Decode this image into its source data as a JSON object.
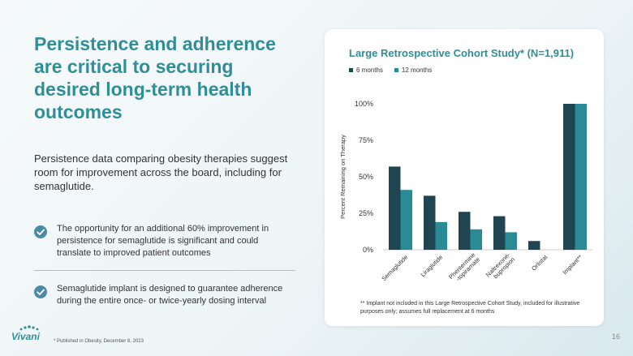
{
  "headline": "Persistence and adherence are critical to securing desired long-term health outcomes",
  "intro": "Persistence data comparing obesity therapies suggest room for improvement across the board, including for semaglutide.",
  "bullets": [
    {
      "text": "The opportunity for an additional 60% improvement in persistence for semaglutide is significant and could translate to improved patient outcomes",
      "icon": "check-circle-icon"
    },
    {
      "text": "Semaglutide implant is designed to guarantee adherence during the entire once- or twice-yearly dosing interval",
      "icon": "check-circle-icon"
    }
  ],
  "footnote": "* Published in Obesity, December 8, 2023",
  "logo_text": "Vivani",
  "page_number": "16",
  "chart_note": "** Implant not included in this Large Retrospective Cohort Study, included for illustrative purposes only; assumes full replacement at 6 months",
  "colors": {
    "accent": "#2f8e96",
    "series_6m": "#1f4650",
    "series_12m": "#2a8a95"
  },
  "chart_data": {
    "type": "bar",
    "title": "Large Retrospective Cohort Study* (N=1,911)",
    "ylabel": "Percent Remaining on Therapy",
    "xlabel": "",
    "ylim": [
      0,
      100
    ],
    "yticks": [
      0,
      25,
      50,
      75,
      100
    ],
    "ytick_labels": [
      "0%",
      "25%",
      "50%",
      "75%",
      "100%"
    ],
    "categories": [
      "Semaglutide",
      "Liraglutide",
      "Phentermine-topiramate",
      "Naltrexone-bupropion",
      "Orlistat",
      "Implant**"
    ],
    "category_lines": [
      [
        "Semaglutide"
      ],
      [
        "Liraglutide"
      ],
      [
        "Phentermine",
        "-topiramate"
      ],
      [
        "Naltrexone-",
        "bupropion"
      ],
      [
        "Orlistat"
      ],
      [
        "Implant**"
      ]
    ],
    "series": [
      {
        "name": "6 months",
        "values": [
          57,
          37,
          26,
          23,
          6,
          100
        ]
      },
      {
        "name": "12 months",
        "values": [
          41,
          19,
          14,
          12,
          0,
          100
        ]
      }
    ],
    "legend": "top-left",
    "grid": false
  }
}
